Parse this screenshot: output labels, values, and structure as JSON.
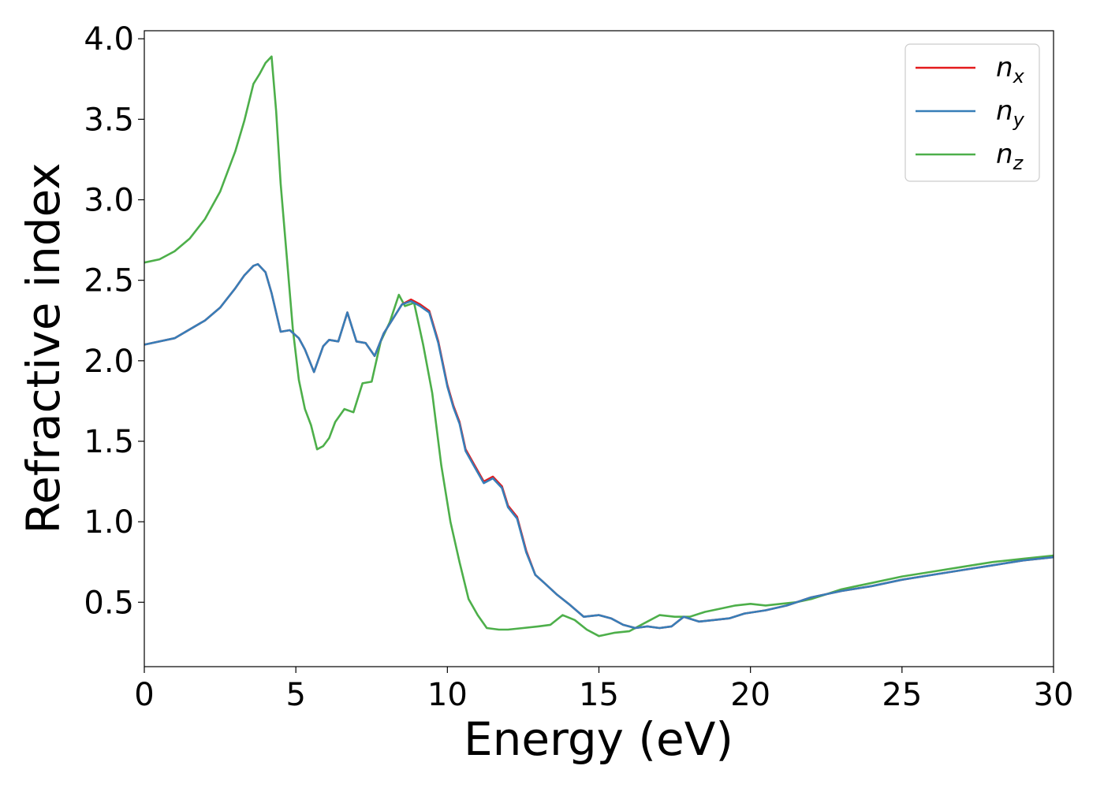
{
  "colors": {
    "nx": "#e41a1c",
    "ny": "#377eb8",
    "nz": "#4daf4a",
    "axis": "#000000",
    "legend_border": "#cccccc"
  },
  "chart_data": {
    "type": "line",
    "title": "",
    "xlabel": "Energy (eV)",
    "ylabel": "Refractive index",
    "xlim": [
      0,
      30
    ],
    "ylim": [
      0.1,
      4.05
    ],
    "xticks": [
      0,
      5,
      10,
      15,
      20,
      25,
      30
    ],
    "xtick_labels": [
      "0",
      "5",
      "10",
      "15",
      "20",
      "25",
      "30"
    ],
    "yticks": [
      0.5,
      1.0,
      1.5,
      2.0,
      2.5,
      3.0,
      3.5,
      4.0
    ],
    "ytick_labels": [
      "0.5",
      "1.0",
      "1.5",
      "2.0",
      "2.5",
      "3.0",
      "3.5",
      "4.0"
    ],
    "grid": false,
    "legend_position": "top-right",
    "series": [
      {
        "name": "n",
        "subscript": "x",
        "color_key": "nx",
        "x": [
          0,
          1,
          2,
          2.5,
          3,
          3.3,
          3.6,
          3.75,
          4.0,
          4.2,
          4.5,
          4.8,
          5.1,
          5.3,
          5.6,
          5.9,
          6.1,
          6.4,
          6.7,
          7.0,
          7.3,
          7.6,
          7.9,
          8.2,
          8.5,
          8.8,
          9.1,
          9.4,
          9.7,
          10.0,
          10.2,
          10.4,
          10.6,
          10.9,
          11.2,
          11.5,
          11.8,
          12.0,
          12.3,
          12.6,
          12.9,
          13.2,
          13.6,
          14.0,
          14.5,
          15.0,
          15.4,
          15.8,
          16.2,
          16.6,
          17.0,
          17.4,
          17.8,
          18.3,
          18.8,
          19.3,
          19.8,
          20.5,
          21.2,
          22.0,
          23.0,
          24.0,
          25.0,
          26.0,
          27.0,
          28.0,
          29.0,
          30.0
        ],
        "y": [
          2.1,
          2.14,
          2.25,
          2.33,
          2.45,
          2.53,
          2.59,
          2.6,
          2.55,
          2.42,
          2.18,
          2.19,
          2.14,
          2.07,
          1.93,
          2.09,
          2.13,
          2.12,
          2.3,
          2.12,
          2.11,
          2.03,
          2.17,
          2.26,
          2.35,
          2.38,
          2.35,
          2.31,
          2.12,
          1.85,
          1.72,
          1.62,
          1.45,
          1.35,
          1.25,
          1.28,
          1.22,
          1.1,
          1.03,
          0.82,
          0.67,
          0.62,
          0.55,
          0.49,
          0.41,
          0.42,
          0.4,
          0.36,
          0.34,
          0.35,
          0.34,
          0.35,
          0.41,
          0.38,
          0.39,
          0.4,
          0.43,
          0.45,
          0.48,
          0.53,
          0.57,
          0.6,
          0.64,
          0.67,
          0.7,
          0.73,
          0.76,
          0.78
        ]
      },
      {
        "name": "n",
        "subscript": "y",
        "color_key": "ny",
        "x": [
          0,
          1,
          2,
          2.5,
          3,
          3.3,
          3.6,
          3.75,
          4.0,
          4.2,
          4.5,
          4.8,
          5.1,
          5.3,
          5.6,
          5.9,
          6.1,
          6.4,
          6.7,
          7.0,
          7.3,
          7.6,
          7.9,
          8.2,
          8.5,
          8.8,
          9.1,
          9.4,
          9.7,
          10.0,
          10.2,
          10.4,
          10.6,
          10.9,
          11.2,
          11.5,
          11.8,
          12.0,
          12.3,
          12.6,
          12.9,
          13.2,
          13.6,
          14.0,
          14.5,
          15.0,
          15.4,
          15.8,
          16.2,
          16.6,
          17.0,
          17.4,
          17.8,
          18.3,
          18.8,
          19.3,
          19.8,
          20.5,
          21.2,
          22.0,
          23.0,
          24.0,
          25.0,
          26.0,
          27.0,
          28.0,
          29.0,
          30.0
        ],
        "y": [
          2.1,
          2.14,
          2.25,
          2.33,
          2.45,
          2.53,
          2.59,
          2.6,
          2.55,
          2.42,
          2.18,
          2.19,
          2.14,
          2.07,
          1.93,
          2.09,
          2.13,
          2.12,
          2.3,
          2.12,
          2.11,
          2.03,
          2.17,
          2.26,
          2.35,
          2.37,
          2.34,
          2.3,
          2.11,
          1.84,
          1.71,
          1.61,
          1.44,
          1.34,
          1.24,
          1.27,
          1.21,
          1.09,
          1.02,
          0.81,
          0.67,
          0.62,
          0.55,
          0.49,
          0.41,
          0.42,
          0.4,
          0.36,
          0.34,
          0.35,
          0.34,
          0.35,
          0.41,
          0.38,
          0.39,
          0.4,
          0.43,
          0.45,
          0.48,
          0.53,
          0.57,
          0.6,
          0.64,
          0.67,
          0.7,
          0.73,
          0.76,
          0.78
        ]
      },
      {
        "name": "n",
        "subscript": "z",
        "color_key": "nz",
        "x": [
          0,
          0.5,
          1,
          1.5,
          2,
          2.5,
          3.0,
          3.3,
          3.6,
          3.8,
          4.0,
          4.2,
          4.35,
          4.5,
          4.7,
          4.9,
          5.1,
          5.3,
          5.5,
          5.7,
          5.9,
          6.1,
          6.3,
          6.6,
          6.9,
          7.2,
          7.5,
          7.8,
          8.1,
          8.4,
          8.6,
          8.9,
          9.2,
          9.5,
          9.8,
          10.1,
          10.4,
          10.7,
          11.0,
          11.3,
          11.7,
          12.0,
          12.5,
          13.0,
          13.4,
          13.8,
          14.2,
          14.6,
          15.0,
          15.5,
          16.0,
          16.5,
          17.0,
          17.5,
          18.0,
          18.5,
          19.0,
          19.5,
          20.0,
          20.5,
          21.0,
          21.5,
          22.0,
          22.5,
          23.0,
          23.5,
          24.0,
          25.0,
          26.0,
          27.0,
          28.0,
          29.0,
          30.0
        ],
        "y": [
          2.61,
          2.63,
          2.68,
          2.76,
          2.88,
          3.05,
          3.3,
          3.49,
          3.72,
          3.78,
          3.85,
          3.89,
          3.55,
          3.1,
          2.65,
          2.2,
          1.88,
          1.7,
          1.6,
          1.45,
          1.47,
          1.52,
          1.62,
          1.7,
          1.68,
          1.86,
          1.87,
          2.12,
          2.24,
          2.41,
          2.34,
          2.36,
          2.1,
          1.8,
          1.35,
          1.0,
          0.75,
          0.52,
          0.42,
          0.34,
          0.33,
          0.33,
          0.34,
          0.35,
          0.36,
          0.42,
          0.39,
          0.33,
          0.29,
          0.31,
          0.32,
          0.37,
          0.42,
          0.41,
          0.41,
          0.44,
          0.46,
          0.48,
          0.49,
          0.48,
          0.49,
          0.5,
          0.52,
          0.55,
          0.58,
          0.6,
          0.62,
          0.66,
          0.69,
          0.72,
          0.75,
          0.77,
          0.79
        ]
      }
    ]
  }
}
